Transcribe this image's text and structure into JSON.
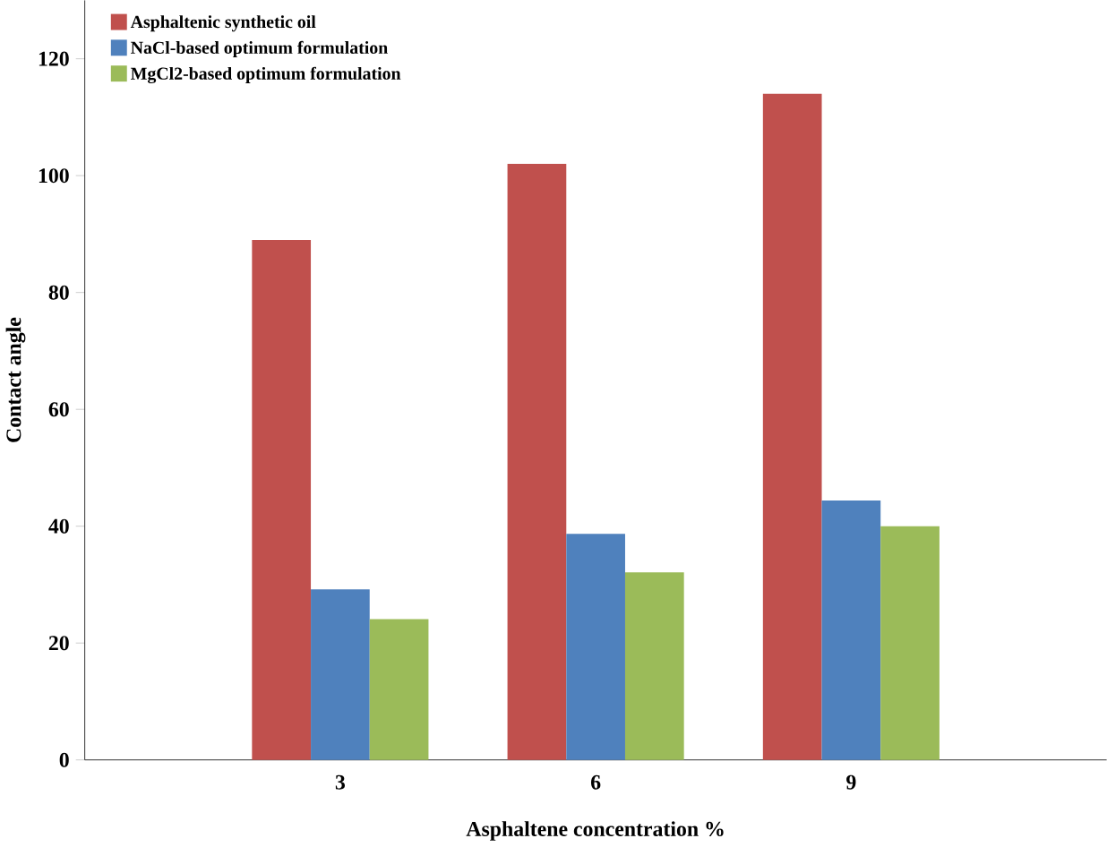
{
  "chart_data": {
    "type": "bar",
    "xlabel": "Asphaltene concentration %",
    "ylabel": "Contact angle",
    "categories": [
      "3",
      "6",
      "9"
    ],
    "series": [
      {
        "name": "Asphaltenic synthetic oil",
        "color": "#c0504d",
        "values": [
          89,
          102,
          114
        ]
      },
      {
        "name": "NaCl-based optimum formulation",
        "color": "#4f81bd",
        "values": [
          29.2,
          38.7,
          44.4
        ]
      },
      {
        "name": "MgCl2-based optimum formulation",
        "color": "#9bbb59",
        "values": [
          24.1,
          32.1,
          40
        ]
      }
    ],
    "ylim": [
      0,
      130
    ],
    "yticks": [
      0,
      20,
      40,
      60,
      80,
      100,
      120
    ],
    "grid": false,
    "legend": "top left"
  }
}
